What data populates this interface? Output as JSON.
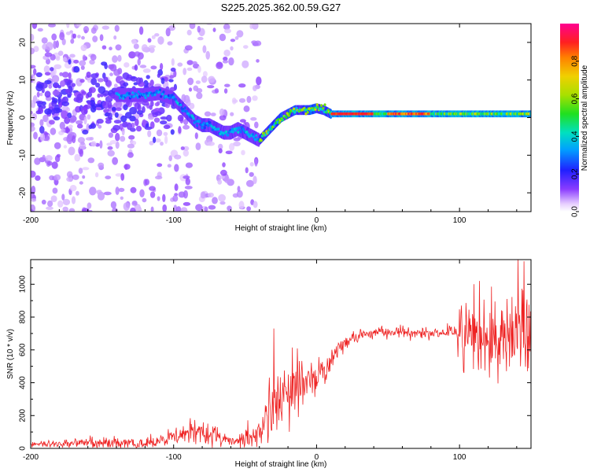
{
  "title": "S225.2025.362.00.59.G27",
  "colors": {
    "snr_line": "#ee2222",
    "axis": "#000000",
    "background": "#ffffff"
  },
  "chart_data": [
    {
      "type": "heatmap",
      "name": "spectrogram",
      "xlabel": "Height of straight line (km)",
      "ylabel": "Frequency (Hz)",
      "xlim": [
        -200,
        150
      ],
      "ylim": [
        -25,
        25
      ],
      "xticks": [
        -200,
        -100,
        0,
        100
      ],
      "xtick_labels": [
        "-200",
        "-100",
        "0",
        "100"
      ],
      "yticks": [
        -20,
        -10,
        0,
        10,
        20
      ],
      "ytick_labels": [
        "-20",
        "-10",
        "0",
        "10",
        "20"
      ],
      "ridge": {
        "description_points_x": [
          -140,
          -130,
          -120,
          -110,
          -100,
          -95,
          -90,
          -85,
          -80,
          -75,
          -70,
          -65,
          -60,
          -55,
          -50,
          -45,
          -40,
          -35,
          -30,
          -25,
          -20,
          -15,
          -10,
          -5,
          0,
          5,
          10,
          50,
          100,
          150
        ],
        "description_points_freq": [
          6,
          6,
          6,
          6.5,
          5,
          3,
          1,
          -1,
          -2,
          -2,
          -3,
          -4,
          -4,
          -3,
          -4,
          -5,
          -6,
          -4,
          -2,
          0,
          1,
          2,
          2,
          2,
          2.5,
          2,
          1,
          1,
          1,
          1
        ]
      },
      "colorbar": {
        "label": "Normalized spectral amplitude",
        "range": [
          0,
          1
        ],
        "ticks": [
          0.0,
          0.2,
          0.4,
          0.6,
          0.8
        ],
        "tick_labels": [
          "0.0",
          "0.2",
          "0.4",
          "0.6",
          "0.8"
        ]
      }
    },
    {
      "type": "line",
      "name": "snr",
      "xlabel": "Height of straight line (km)",
      "ylabel": "SNR (10 * v/v)",
      "xlim": [
        -200,
        150
      ],
      "ylim": [
        0,
        1150
      ],
      "xticks": [
        -200,
        -100,
        0,
        100
      ],
      "xtick_labels": [
        "-200",
        "-100",
        "0",
        "100"
      ],
      "yticks": [
        0,
        200,
        400,
        600,
        800,
        1000
      ],
      "ytick_labels": [
        "0",
        "200",
        "400",
        "600",
        "800",
        "1000"
      ],
      "trend_x": [
        -200,
        -180,
        -160,
        -140,
        -120,
        -110,
        -100,
        -90,
        -80,
        -70,
        -60,
        -50,
        -40,
        -35,
        -30,
        -25,
        -20,
        -15,
        -10,
        -5,
        0,
        5,
        10,
        15,
        20,
        30,
        40,
        50,
        60,
        70,
        80,
        90,
        100,
        110,
        120,
        130,
        140,
        150
      ],
      "trend_y": [
        20,
        30,
        40,
        30,
        30,
        40,
        70,
        90,
        100,
        80,
        50,
        50,
        80,
        200,
        260,
        300,
        340,
        370,
        390,
        420,
        450,
        480,
        530,
        600,
        640,
        690,
        700,
        710,
        710,
        700,
        700,
        700,
        700,
        690,
        690,
        680,
        690,
        700
      ],
      "spread_x": [
        -200,
        -150,
        -110,
        -100,
        -80,
        -70,
        -60,
        -45,
        -30,
        -20,
        -10,
        0,
        10,
        20,
        40,
        90,
        95,
        100,
        120,
        140,
        150
      ],
      "spread_y": [
        20,
        30,
        35,
        50,
        80,
        60,
        40,
        60,
        180,
        220,
        120,
        100,
        60,
        40,
        30,
        30,
        60,
        200,
        220,
        260,
        240
      ],
      "notable_peaks": [
        {
          "x": -30,
          "y": 730
        },
        {
          "x": 141,
          "y": 1150
        },
        {
          "x": 145,
          "y": 1140
        },
        {
          "x": 114,
          "y": 1020
        },
        {
          "x": 110,
          "y": 1000
        }
      ]
    }
  ]
}
